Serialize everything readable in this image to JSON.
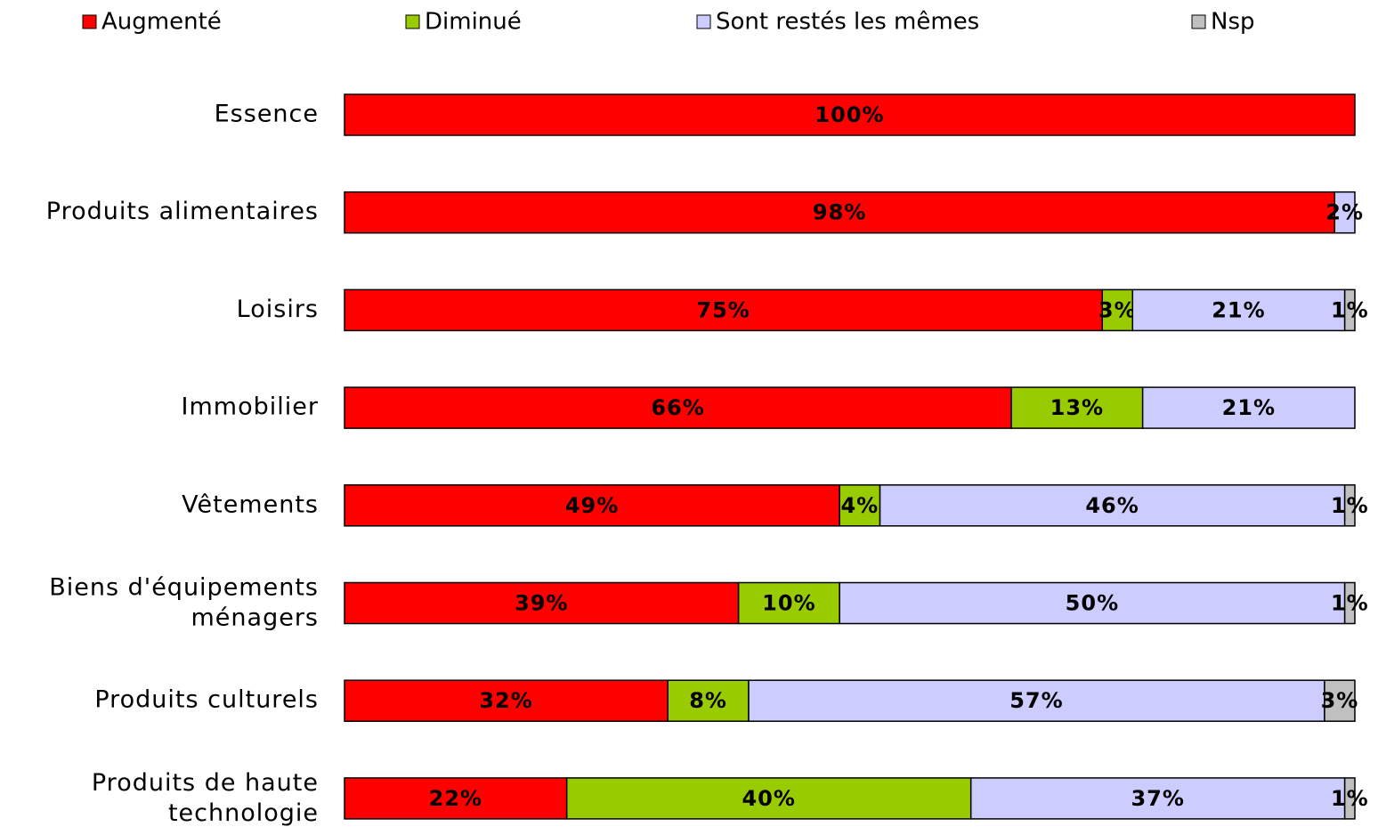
{
  "chart_data": {
    "type": "stacked-barh",
    "categories": [
      "Essence",
      "Produits alimentaires",
      "Loisirs",
      "Immobilier",
      "Vêtements",
      "Biens d'équipements\nménagers",
      "Produits culturels",
      "Produits de haute\ntechnologie"
    ],
    "series": [
      {
        "name": "Augmenté",
        "color": "#ff0000",
        "values": [
          100,
          98,
          75,
          66,
          49,
          39,
          32,
          22
        ],
        "value_labels": [
          "100%",
          "98%",
          "75%",
          "66%",
          "49%",
          "39%",
          "32%",
          "22%"
        ]
      },
      {
        "name": "Diminué",
        "color": "#99cc00",
        "values": [
          0,
          0,
          3,
          13,
          4,
          10,
          8,
          40
        ],
        "value_labels": [
          null,
          null,
          "3%",
          "13%",
          "4%",
          "10%",
          "8%",
          "40%"
        ]
      },
      {
        "name": "Sont restés les mêmes",
        "color": "#ccccff",
        "values": [
          0,
          2,
          21,
          21,
          46,
          50,
          57,
          37
        ],
        "value_labels": [
          null,
          "2%",
          "21%",
          "21%",
          "46%",
          "50%",
          "57%",
          "37%"
        ]
      },
      {
        "name": "Nsp",
        "color": "#c0c0c0",
        "values": [
          0,
          0,
          1,
          0,
          1,
          1,
          3,
          1
        ],
        "value_labels": [
          null,
          null,
          "1%",
          null,
          "1%",
          "1%",
          "3%",
          "1%"
        ]
      }
    ],
    "xlim": [
      0,
      100
    ],
    "legend": "top"
  }
}
